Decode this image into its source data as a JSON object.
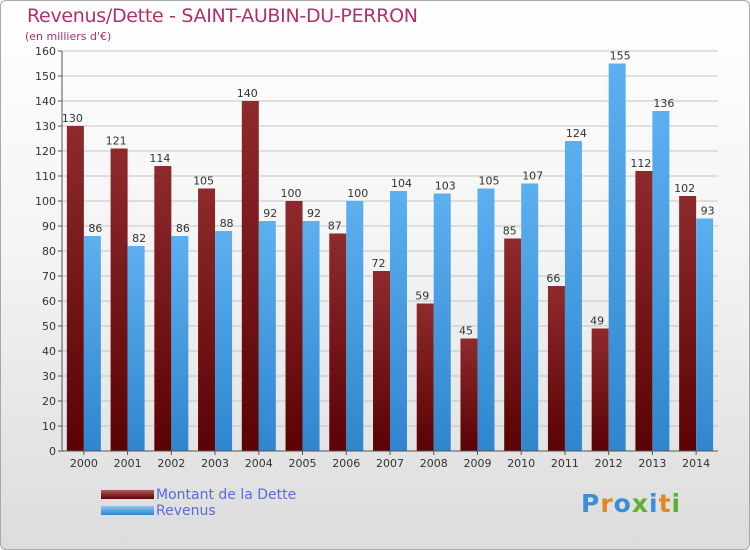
{
  "title": "Revenus/Dette - SAINT-AUBIN-DU-PERRON",
  "subtitle": "(en milliers d'€)",
  "colors": {
    "dette": "#7a1416",
    "revenus": "#3e9ae2",
    "title": "#b0306a",
    "legend_text": "#5b6bdc"
  },
  "chart_data": {
    "type": "bar",
    "title": "Revenus/Dette - SAINT-AUBIN-DU-PERRON",
    "ylabel": "(en milliers d'€)",
    "xlabel": "",
    "ylim": [
      0,
      160
    ],
    "ytick_step": 10,
    "grid": true,
    "legend_position": "bottom-left",
    "categories": [
      "2000",
      "2001",
      "2002",
      "2003",
      "2004",
      "2005",
      "2006",
      "2007",
      "2008",
      "2009",
      "2010",
      "2011",
      "2012",
      "2013",
      "2014"
    ],
    "series": [
      {
        "name": "Montant de la Dette",
        "color": "#7a1416",
        "values": [
          130,
          121,
          114,
          105,
          140,
          100,
          87,
          72,
          59,
          45,
          85,
          66,
          49,
          112,
          102
        ]
      },
      {
        "name": "Revenus",
        "color": "#3e9ae2",
        "values": [
          86,
          82,
          86,
          88,
          92,
          92,
          100,
          104,
          103,
          105,
          107,
          124,
          155,
          136,
          93
        ]
      }
    ]
  },
  "legend": {
    "items": [
      {
        "label": "Montant de la Dette"
      },
      {
        "label": "Revenus"
      }
    ]
  },
  "logo": {
    "text": "Proxiti"
  }
}
